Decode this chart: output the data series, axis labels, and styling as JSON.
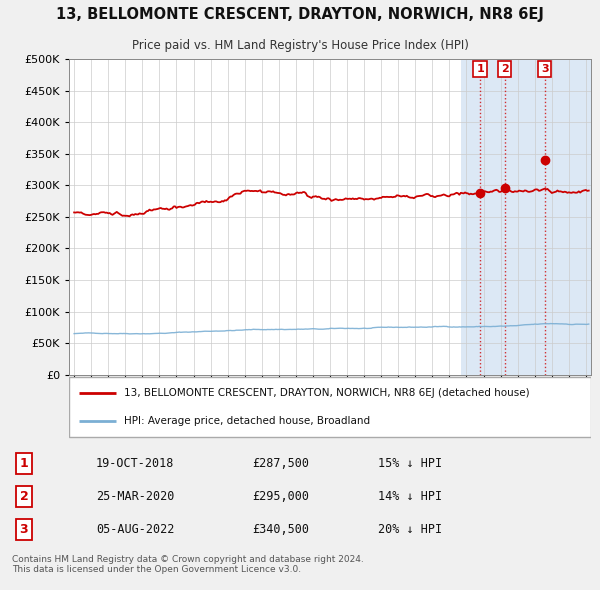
{
  "title": "13, BELLOMONTE CRESCENT, DRAYTON, NORWICH, NR8 6EJ",
  "subtitle": "Price paid vs. HM Land Registry's House Price Index (HPI)",
  "ylim": [
    0,
    500000
  ],
  "yticks": [
    0,
    50000,
    100000,
    150000,
    200000,
    250000,
    300000,
    350000,
    400000,
    450000,
    500000
  ],
  "ytick_labels": [
    "£0",
    "£50K",
    "£100K",
    "£150K",
    "£200K",
    "£250K",
    "£300K",
    "£350K",
    "£400K",
    "£450K",
    "£500K"
  ],
  "hpi_color": "#7bafd4",
  "price_color": "#cc0000",
  "vline_color": "#cc0000",
  "marker_color": "#cc0000",
  "background_color": "#f0f0f0",
  "plot_bg_color": "#ffffff",
  "grid_color": "#cccccc",
  "highlight_color": "#dce8f5",
  "transactions": [
    {
      "label": "1",
      "date_str": "19-OCT-2018",
      "date_x": 2018.8,
      "price": 287500,
      "pct": "15%",
      "direction": "↓"
    },
    {
      "label": "2",
      "date_str": "25-MAR-2020",
      "date_x": 2020.23,
      "price": 295000,
      "pct": "14%",
      "direction": "↓"
    },
    {
      "label": "3",
      "date_str": "05-AUG-2022",
      "date_x": 2022.59,
      "price": 340500,
      "pct": "20%",
      "direction": "↓"
    }
  ],
  "legend_property_label": "13, BELLOMONTE CRESCENT, DRAYTON, NORWICH, NR8 6EJ (detached house)",
  "legend_hpi_label": "HPI: Average price, detached house, Broadland",
  "footer": "Contains HM Land Registry data © Crown copyright and database right 2024.\nThis data is licensed under the Open Government Licence v3.0.",
  "xmin": 1995,
  "xmax": 2025,
  "highlight_xmin": 2017.7,
  "highlight_xmax": 2025.5
}
